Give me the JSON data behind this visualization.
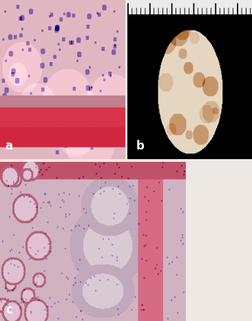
{
  "layout": {
    "figsize": [
      3.66,
      4.66
    ],
    "dpi": 100
  },
  "panels": {
    "a": {
      "label": "a",
      "label_color": "white"
    },
    "b": {
      "label": "b",
      "label_color": "white"
    },
    "c": {
      "label": "c",
      "label_color": "white"
    }
  },
  "label_fontsize": 12,
  "bg_color": "#ede8e3"
}
